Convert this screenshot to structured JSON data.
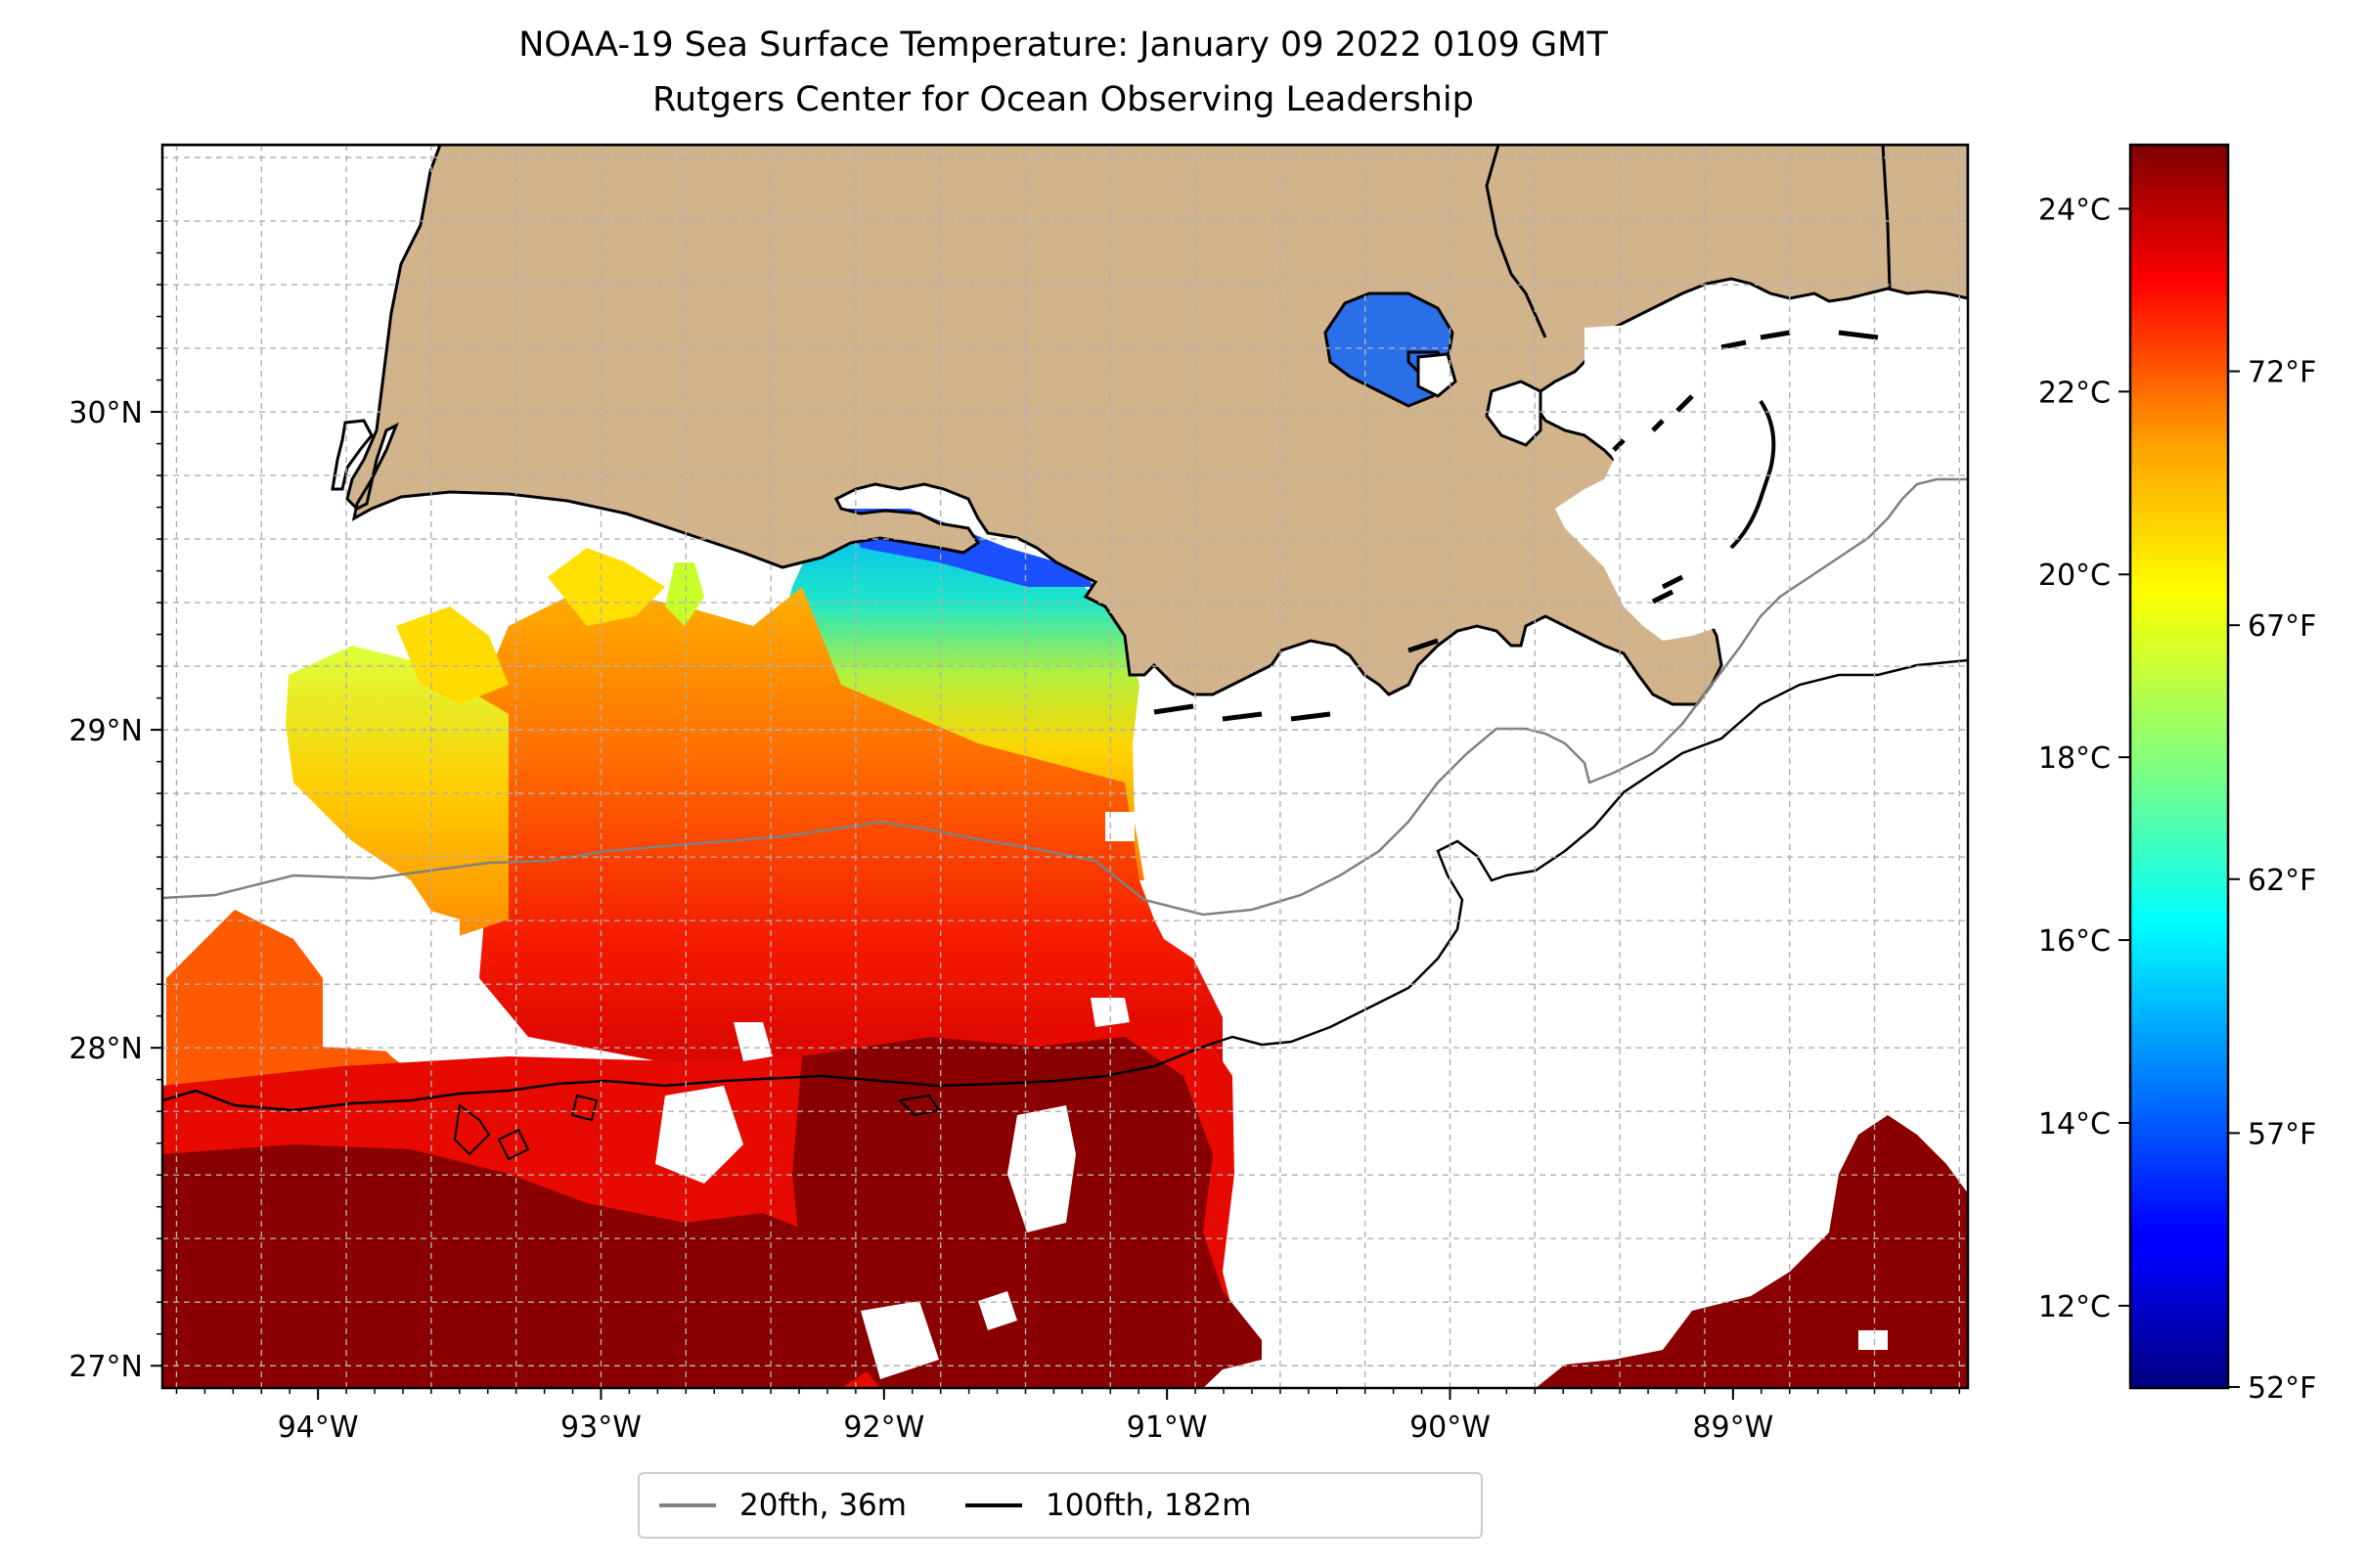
{
  "title": {
    "line1": "NOAA-19 Sea Surface Temperature: January 09 2022 0109 GMT",
    "line2": "Rutgers Center for Ocean Observing Leadership"
  },
  "map": {
    "x_ticks": [
      "94°W",
      "93°W",
      "92°W",
      "91°W",
      "90°W",
      "89°W"
    ],
    "y_ticks": [
      "30°N",
      "29°N",
      "28°N",
      "27°N"
    ],
    "land_color": "#d2b48c",
    "grid": "dashed"
  },
  "colorbar": {
    "colormap": "jet",
    "celsius_ticks": [
      "24°C",
      "22°C",
      "20°C",
      "18°C",
      "16°C",
      "14°C",
      "12°C"
    ],
    "fahrenheit_ticks": [
      "72°F",
      "67°F",
      "62°F",
      "57°F",
      "52°F"
    ],
    "range_celsius": [
      11.1,
      24.7
    ]
  },
  "legend": {
    "placement": "bottom-center",
    "items": [
      {
        "label": "20fth, 36m",
        "color": "#808080"
      },
      {
        "label": "100fth, 182m",
        "color": "#000000"
      }
    ]
  }
}
